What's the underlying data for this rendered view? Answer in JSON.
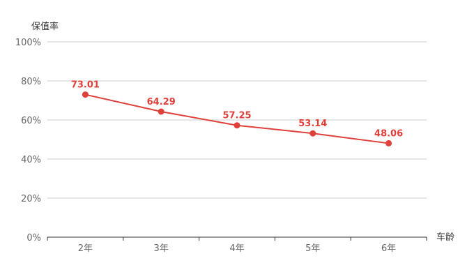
{
  "chart_data": {
    "type": "line",
    "categories": [
      "2年",
      "3年",
      "4年",
      "5年",
      "6年"
    ],
    "series": [
      {
        "values": [
          73.01,
          64.29,
          57.25,
          53.14,
          48.06
        ]
      }
    ],
    "data_labels": [
      "73.01",
      "64.29",
      "57.25",
      "53.14",
      "48.06"
    ],
    "title": "",
    "xlabel": "车龄",
    "ylabel": "保值率",
    "ylim": [
      0,
      100
    ],
    "yticks": [
      0,
      20,
      40,
      60,
      80,
      100
    ],
    "ytick_labels": [
      "0%",
      "20%",
      "40%",
      "60%",
      "80%",
      "100%"
    ],
    "grid": true,
    "legend": "none",
    "colors": {
      "series": "#e0403a",
      "grid": "#cccccc",
      "axis": "#333333",
      "tick_text": "#666666"
    }
  }
}
